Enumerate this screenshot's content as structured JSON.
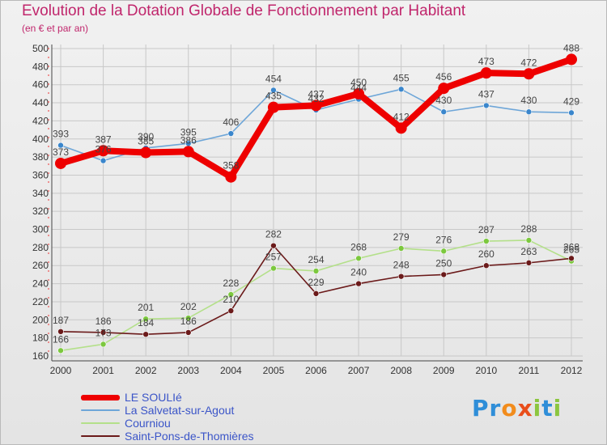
{
  "header": {
    "title": "Evolution de la Dotation Globale de Fonctionnement par Habitant",
    "subtitle": "(en € et par an)"
  },
  "colors": {
    "title": "#c0266c",
    "legend_text": "#3b55c8",
    "grid": "#c8c8c8",
    "axis_text": "#333333"
  },
  "logo": {
    "letters": [
      {
        "ch": "P",
        "color": "#2f8ed8"
      },
      {
        "ch": "r",
        "color": "#2f8ed8"
      },
      {
        "ch": "o",
        "color": "#f28c1c"
      },
      {
        "ch": "x",
        "color": "#e94e1b"
      },
      {
        "ch": "i",
        "color": "#8cc63f"
      },
      {
        "ch": "t",
        "color": "#2f8ed8"
      },
      {
        "ch": "i",
        "color": "#8cc63f"
      }
    ]
  },
  "chart_data": {
    "type": "line",
    "title": "Evolution de la Dotation Globale de Fonctionnement par Habitant",
    "subtitle": "(en € et par an)",
    "xlabel": "",
    "ylabel": "",
    "x": [
      2000,
      2001,
      2002,
      2003,
      2004,
      2005,
      2006,
      2007,
      2008,
      2009,
      2010,
      2011,
      2012
    ],
    "ylim": [
      160,
      500
    ],
    "yticks": [
      160,
      180,
      200,
      220,
      240,
      260,
      280,
      300,
      320,
      340,
      360,
      380,
      400,
      420,
      440,
      460,
      480,
      500
    ],
    "grid": true,
    "legend_position": "bottom-left",
    "series": [
      {
        "name": "LE SOULIé",
        "color": "#ee0000",
        "marker": "#ee0000",
        "emphasis": true,
        "values": [
          373,
          387,
          385,
          386,
          358,
          435,
          437,
          450,
          412,
          456,
          473,
          472,
          488
        ],
        "labels": [
          "373",
          "387",
          "385",
          "386",
          "358",
          "435",
          "437",
          "450",
          "412",
          "456",
          "473",
          "472",
          "488"
        ]
      },
      {
        "name": "La Salvetat-sur-Agout",
        "color": "#6ea6d8",
        "marker": "#3a86cc",
        "values": [
          393,
          376,
          390,
          395,
          406,
          454,
          432,
          444,
          455,
          430,
          437,
          430,
          429
        ],
        "labels": [
          "393",
          "376",
          "390",
          "395",
          "406",
          "454",
          "432",
          "444",
          "455",
          "430",
          "437",
          "430",
          "429"
        ]
      },
      {
        "name": "Courniou",
        "color": "#b4e08a",
        "marker": "#7cc83e",
        "values": [
          166,
          173,
          201,
          202,
          228,
          257,
          254,
          268,
          279,
          276,
          287,
          288,
          265
        ],
        "labels": [
          "166",
          "173",
          "201",
          "202",
          "228",
          "257",
          "254",
          "268",
          "279",
          "276",
          "287",
          "288",
          "265"
        ]
      },
      {
        "name": "Saint-Pons-de-Thomières",
        "color": "#6b1a1a",
        "marker": "#6b1a1a",
        "values": [
          187,
          186,
          184,
          186,
          210,
          282,
          229,
          240,
          248,
          250,
          260,
          263,
          268
        ],
        "labels": [
          "187",
          "186",
          "184",
          "186",
          "210",
          "282",
          "229",
          "240",
          "248",
          "250",
          "260",
          "263",
          "268"
        ]
      }
    ]
  }
}
